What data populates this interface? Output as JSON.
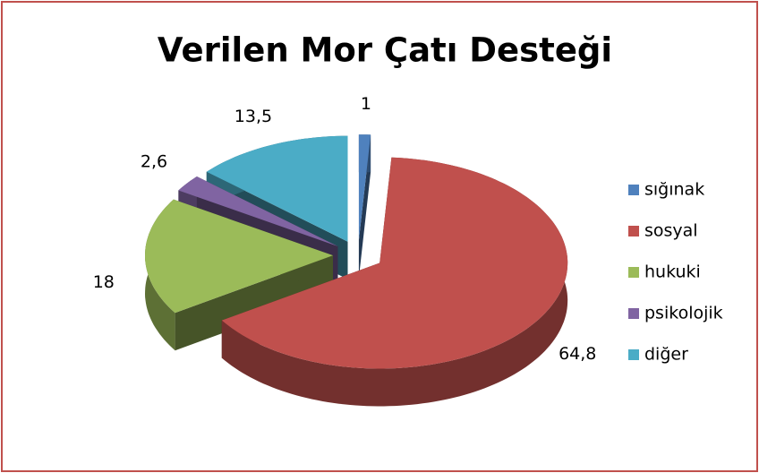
{
  "chart_data": {
    "type": "pie3d",
    "title": "Verilen Mor Çatı Desteği",
    "categories": [
      "sığınak",
      "sosyal",
      "hukuki",
      "psikolojik",
      "diğer"
    ],
    "values": [
      1,
      64.8,
      18,
      2.6,
      13.5
    ],
    "value_labels": [
      "1",
      "64,8",
      "18",
      "2,6",
      "13,5"
    ],
    "colors": [
      "#4f81bd",
      "#c0504d",
      "#9bbb59",
      "#8064a2",
      "#4bacc6"
    ],
    "legend": "right"
  }
}
